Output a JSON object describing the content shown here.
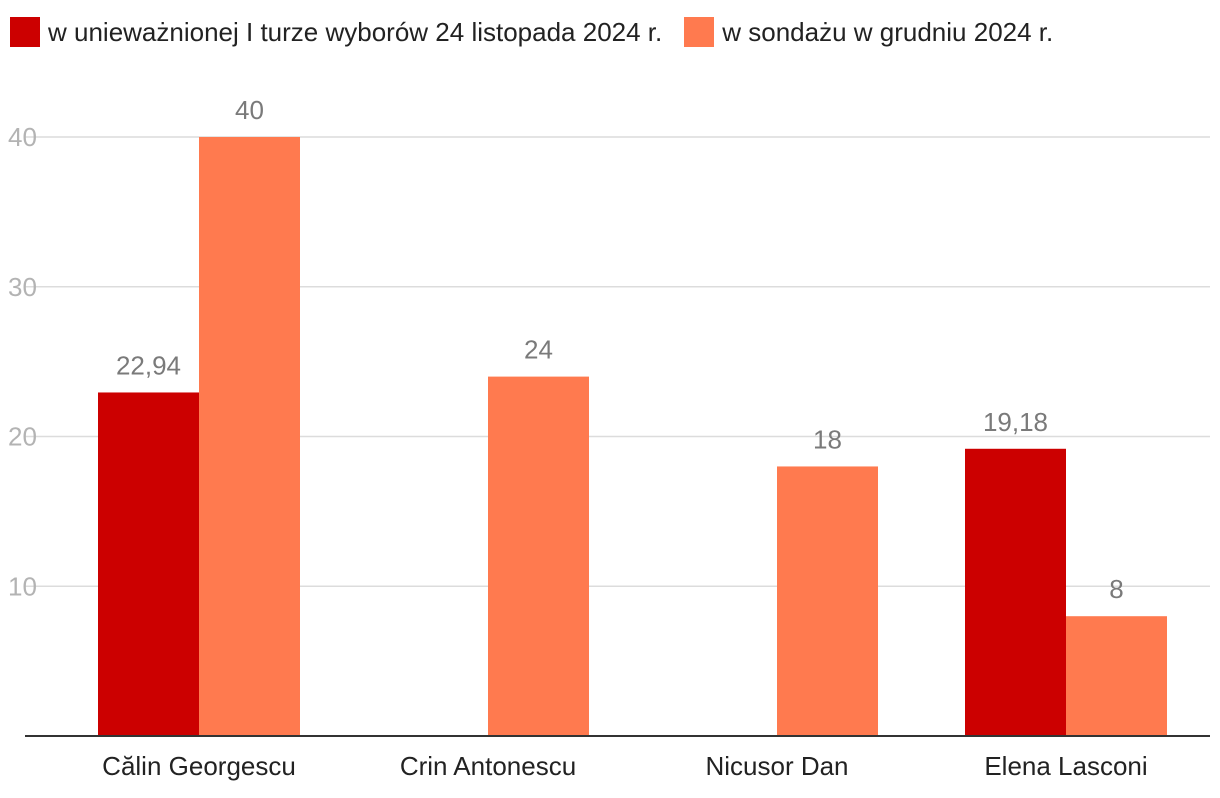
{
  "legend": [
    {
      "label": "w unieważnionej I turze wyborów 24 listopada 2024 r.",
      "color": "#cc0000"
    },
    {
      "label": "w sondażu w grudniu 2024 r.",
      "color": "#ff7a4f"
    }
  ],
  "chart_data": {
    "type": "bar",
    "categories": [
      "Călin Georgescu",
      "Crin Antonescu",
      "Nicusor Dan",
      "Elena Lasconi"
    ],
    "series": [
      {
        "name": "w unieważnionej I turze wyborów 24 listopada 2024 r.",
        "color": "#cc0000",
        "values": [
          22.94,
          null,
          null,
          19.18
        ]
      },
      {
        "name": "w sondażu w grudniu 2024 r.",
        "color": "#ff7a4f",
        "values": [
          40,
          24,
          18,
          8
        ]
      }
    ],
    "data_labels": [
      [
        "22,94",
        null,
        null,
        "19,18"
      ],
      [
        "40",
        "24",
        "18",
        "8"
      ]
    ],
    "yticks": [
      10,
      20,
      30,
      40
    ],
    "ytick_labels": [
      "10",
      "20",
      "30",
      "40"
    ],
    "ylim": [
      0,
      40
    ],
    "grid": true,
    "legend_position": "top-left",
    "title": "",
    "xlabel": "",
    "ylabel": ""
  }
}
